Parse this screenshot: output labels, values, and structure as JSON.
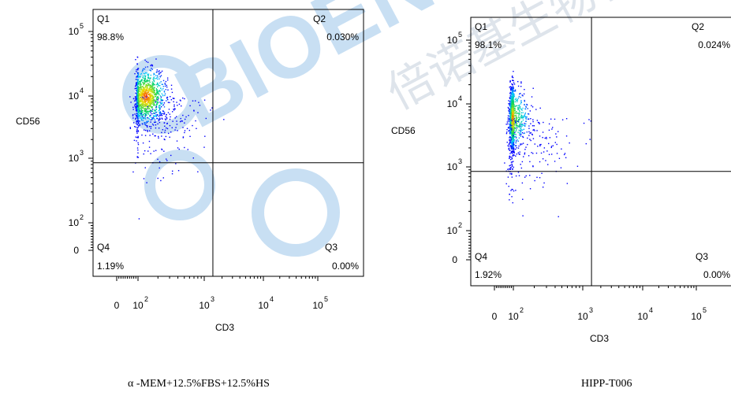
{
  "chart_data": [
    {
      "type": "scatter",
      "caption": "α -MEM+12.5%FBS+12.5%HS",
      "xlabel": "CD3",
      "ylabel": "CD56",
      "x_scale": "biexponential",
      "y_scale": "biexponential",
      "x_ticks": [
        {
          "value": 0,
          "base": "0",
          "exp": ""
        },
        {
          "value": 100,
          "base": "10",
          "exp": "2"
        },
        {
          "value": 1000,
          "base": "10",
          "exp": "3"
        },
        {
          "value": 10000,
          "base": "10",
          "exp": "4"
        },
        {
          "value": 100000,
          "base": "10",
          "exp": "5"
        }
      ],
      "y_ticks": [
        {
          "value": 0,
          "base": "0",
          "exp": ""
        },
        {
          "value": 100,
          "base": "10",
          "exp": "2"
        },
        {
          "value": 1000,
          "base": "10",
          "exp": "3"
        },
        {
          "value": 10000,
          "base": "10",
          "exp": "4"
        },
        {
          "value": 100000,
          "base": "10",
          "exp": "5"
        }
      ],
      "gate": {
        "x": 1400,
        "y": 850
      },
      "quadrants": [
        {
          "label": "Q1",
          "percent": "98.8%"
        },
        {
          "label": "Q2",
          "percent": "0.030%"
        },
        {
          "label": "Q3",
          "percent": "0.00%"
        },
        {
          "label": "Q4",
          "percent": "1.19%"
        }
      ],
      "population": {
        "center_x": 130,
        "center_y": 10000,
        "spread_decades": 0.22
      }
    },
    {
      "type": "scatter",
      "caption": "HIPP-T006",
      "xlabel": "CD3",
      "ylabel": "CD56",
      "x_scale": "biexponential",
      "y_scale": "biexponential",
      "x_ticks": [
        {
          "value": 0,
          "base": "0",
          "exp": ""
        },
        {
          "value": 100,
          "base": "10",
          "exp": "2"
        },
        {
          "value": 1000,
          "base": "10",
          "exp": "3"
        },
        {
          "value": 10000,
          "base": "10",
          "exp": "4"
        },
        {
          "value": 100000,
          "base": "10",
          "exp": "5"
        }
      ],
      "y_ticks": [
        {
          "value": 0,
          "base": "0",
          "exp": ""
        },
        {
          "value": 100,
          "base": "10",
          "exp": "2"
        },
        {
          "value": 1000,
          "base": "10",
          "exp": "3"
        },
        {
          "value": 10000,
          "base": "10",
          "exp": "4"
        },
        {
          "value": 100000,
          "base": "10",
          "exp": "5"
        }
      ],
      "gate": {
        "x": 1400,
        "y": 850
      },
      "quadrants": [
        {
          "label": "Q1",
          "percent": "98.1%"
        },
        {
          "label": "Q2",
          "percent": "0.024%"
        },
        {
          "label": "Q3",
          "percent": "0.00%"
        },
        {
          "label": "Q4",
          "percent": "1.92%"
        }
      ],
      "population": {
        "center_x": 75,
        "center_y": 6000,
        "spread_decades": 0.24
      }
    }
  ],
  "watermark": {
    "logo_text": "BIOENG",
    "cjk_text": "倍诺基生物科"
  },
  "colors": {
    "density_low": "#0000ff",
    "density_mid": "#00cc66",
    "density_high": "#ff0000",
    "watermark": "#3c8fd6"
  }
}
